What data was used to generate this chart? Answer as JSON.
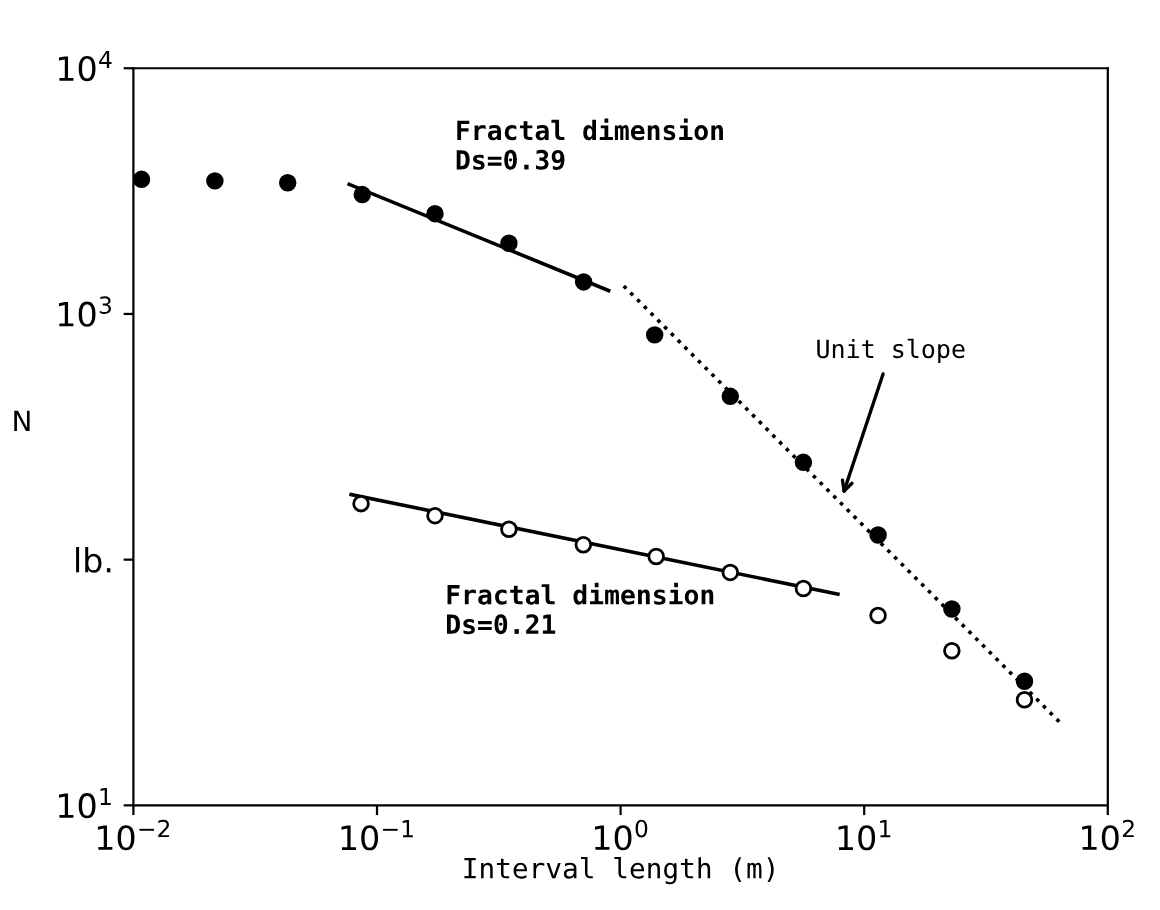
{
  "chart_data": {
    "type": "scatter",
    "xlabel": "Interval length (m)",
    "ylabel": "N",
    "log": "xy",
    "xlim": [
      0.01,
      100
    ],
    "ylim": [
      10,
      10000
    ],
    "xticks": [
      {
        "value": 0.01,
        "label": "10$^{−2}$"
      },
      {
        "value": 0.1,
        "label": "10$^{−1}$"
      },
      {
        "value": 1,
        "label": "10$^{0}$"
      },
      {
        "value": 10,
        "label": "10$^{1}$"
      },
      {
        "value": 100,
        "label": "10$^{2}$"
      }
    ],
    "yticks": [
      {
        "value": 10,
        "label": "10$^{1}$"
      },
      {
        "value": 100,
        "label": "lb."
      },
      {
        "value": 1000,
        "label": "10$^{3}$"
      },
      {
        "value": 10000,
        "label": "10$^{4}$"
      }
    ],
    "grid": false,
    "legend": false,
    "series": [
      {
        "color": "#000000",
        "marker": "circle",
        "x": [
          0.0108,
          0.0216,
          0.043,
          0.087,
          0.173,
          0.348,
          0.705,
          1.38,
          2.82,
          5.63,
          11.4,
          22.9,
          45.5
        ],
        "values": [
          3530,
          3480,
          3420,
          3060,
          2560,
          1940,
          1350,
          822,
          462,
          249,
          126,
          63,
          32
        ]
      },
      {
        "color": "#ffffff",
        "marker": "circle",
        "x": [
          0.086,
          0.173,
          0.348,
          0.703,
          1.4,
          2.82,
          5.63,
          11.4,
          22.9,
          45.5
        ],
        "values": [
          169,
          151,
          133,
          115,
          103,
          88.7,
          76.3,
          59.3,
          42.6,
          26.9
        ]
      },
      {
        "type": "line",
        "color": "#000000",
        "line_style": "solid",
        "x": [
          0.0769,
          0.893
        ],
        "values": [
          3370,
          1245
        ]
      },
      {
        "type": "line",
        "color": "#000000",
        "line_style": "solid",
        "x": [
          0.0783,
          7.8
        ],
        "values": [
          184,
          72.4
        ]
      },
      {
        "type": "line",
        "color": "#000000",
        "line_style": "dotted",
        "x": [
          1.03,
          65.0
        ],
        "values": [
          1300,
          21.3
        ]
      }
    ],
    "annotations": [
      "Fractal dimension\nDs=0.39",
      "Fractal dimension\nDs=0.21",
      {
        "text": "Unit slope",
        "x": 8.04,
        "y": 175
      }
    ]
  }
}
